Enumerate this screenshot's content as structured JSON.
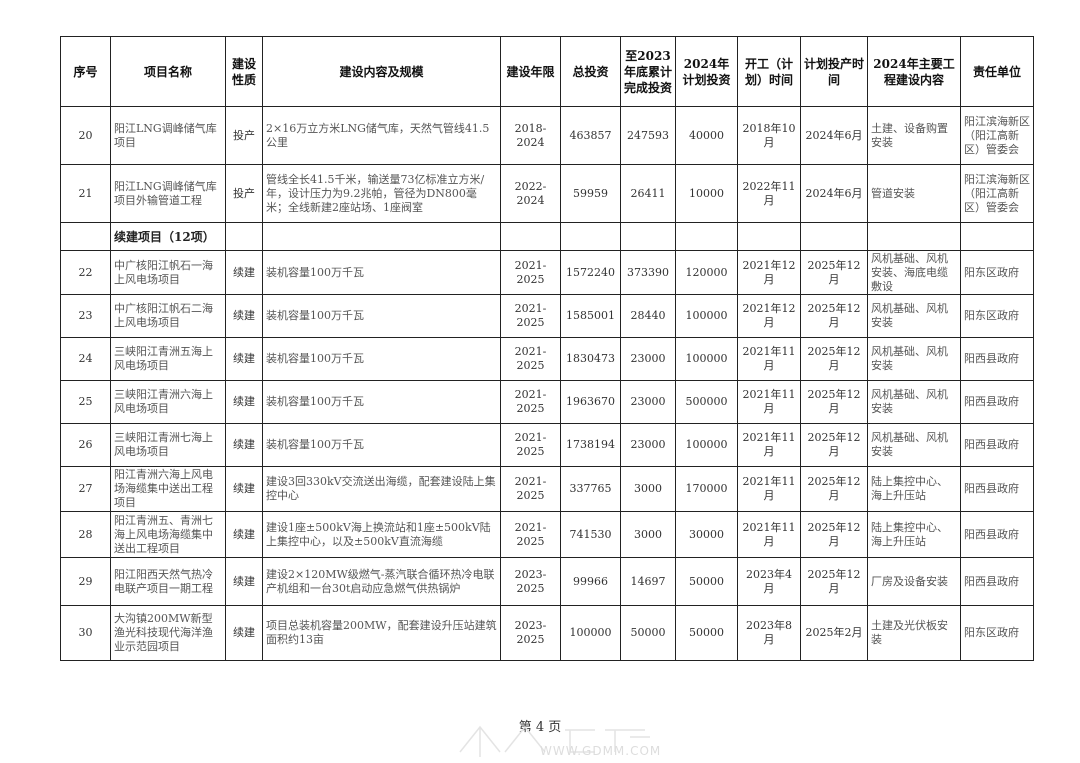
{
  "headers": [
    "序号",
    "项目名称",
    "建设性质",
    "建设内容及规模",
    "建设年限",
    "总投资",
    "至2023年底累计完成投资",
    "2024年计划投资",
    "开工（计划）时间",
    "计划投产时间",
    "2024年主要工程建设内容",
    "责任单位"
  ],
  "rows_a": [
    {
      "no": "20",
      "name": "阳江LNG调峰储气库项目",
      "type": "投产",
      "content": "2×16万立方米LNG储气库，天然气管线41.5公里",
      "period": "2018-2024",
      "total": "463857",
      "done": "247593",
      "plan": "40000",
      "start": "2018年10月",
      "finish": "2024年6月",
      "work": "土建、设备购置安装",
      "unit": "阳江滨海新区（阳江高新区）管委会"
    },
    {
      "no": "21",
      "name": "阳江LNG调峰储气库项目外输管道工程",
      "type": "投产",
      "content": "管线全长41.5千米，输送量73亿标准立方米/年，设计压力为9.2兆帕，管径为DN800毫米；全线新建2座站场、1座阀室",
      "period": "2022-2024",
      "total": "59959",
      "done": "26411",
      "plan": "10000",
      "start": "2022年11月",
      "finish": "2024年6月",
      "work": "管道安装",
      "unit": "阳江滨海新区（阳江高新区）管委会"
    }
  ],
  "section_label": "续建项目（12项）",
  "rows_b": [
    {
      "no": "22",
      "name": "中广核阳江帆石一海上风电场项目",
      "type": "续建",
      "content": "装机容量100万千瓦",
      "period": "2021-2025",
      "total": "1572240",
      "done": "373390",
      "plan": "120000",
      "start": "2021年12月",
      "finish": "2025年12月",
      "work": "风机基础、风机安装、海底电缆敷设",
      "unit": "阳东区政府"
    },
    {
      "no": "23",
      "name": "中广核阳江帆石二海上风电场项目",
      "type": "续建",
      "content": "装机容量100万千瓦",
      "period": "2021-2025",
      "total": "1585001",
      "done": "28440",
      "plan": "100000",
      "start": "2021年12月",
      "finish": "2025年12月",
      "work": "风机基础、风机安装",
      "unit": "阳东区政府"
    },
    {
      "no": "24",
      "name": "三峡阳江青洲五海上风电场项目",
      "type": "续建",
      "content": "装机容量100万千瓦",
      "period": "2021-2025",
      "total": "1830473",
      "done": "23000",
      "plan": "100000",
      "start": "2021年11月",
      "finish": "2025年12月",
      "work": "风机基础、风机安装",
      "unit": "阳西县政府"
    },
    {
      "no": "25",
      "name": "三峡阳江青洲六海上风电场项目",
      "type": "续建",
      "content": "装机容量100万千瓦",
      "period": "2021-2025",
      "total": "1963670",
      "done": "23000",
      "plan": "500000",
      "start": "2021年11月",
      "finish": "2025年12月",
      "work": "风机基础、风机安装",
      "unit": "阳西县政府"
    },
    {
      "no": "26",
      "name": "三峡阳江青洲七海上风电场项目",
      "type": "续建",
      "content": "装机容量100万千瓦",
      "period": "2021-2025",
      "total": "1738194",
      "done": "23000",
      "plan": "100000",
      "start": "2021年11月",
      "finish": "2025年12月",
      "work": "风机基础、风机安装",
      "unit": "阳西县政府"
    },
    {
      "no": "27",
      "name": "阳江青洲六海上风电场海缆集中送出工程项目",
      "type": "续建",
      "content": "建设3回330kV交流送出海缆，配套建设陆上集控中心",
      "period": "2021-2025",
      "total": "337765",
      "done": "3000",
      "plan": "170000",
      "start": "2021年11月",
      "finish": "2025年12月",
      "work": "陆上集控中心、海上升压站",
      "unit": "阳西县政府"
    },
    {
      "no": "28",
      "name": "阳江青洲五、青洲七海上风电场海缆集中送出工程项目",
      "type": "续建",
      "content": "建设1座±500kV海上换流站和1座±500kV陆上集控中心，以及±500kV直流海缆",
      "period": "2021-2025",
      "total": "741530",
      "done": "3000",
      "plan": "30000",
      "start": "2021年11月",
      "finish": "2025年12月",
      "work": "陆上集控中心、海上升压站",
      "unit": "阳西县政府"
    },
    {
      "no": "29",
      "name": "阳江阳西天然气热冷电联产项目一期工程",
      "type": "续建",
      "content": "建设2×120MW级燃气-蒸汽联合循环热冷电联产机组和一台30t启动应急燃气供热锅炉",
      "period": "2023-2025",
      "total": "99966",
      "done": "14697",
      "plan": "50000",
      "start": "2023年4月",
      "finish": "2025年12月",
      "work": "厂房及设备安装",
      "unit": "阳西县政府"
    },
    {
      "no": "30",
      "name": "大沟镇200MW新型渔光科技现代海洋渔业示范园项目",
      "type": "续建",
      "content": "项目总装机容量200MW，配套建设升压站建筑面积约13亩",
      "period": "2023-2025",
      "total": "100000",
      "done": "50000",
      "plan": "50000",
      "start": "2023年8月",
      "finish": "2025年2月",
      "work": "土建及光伏板安装",
      "unit": "阳东区政府"
    }
  ],
  "footer": {
    "page_label": "第 4 页"
  },
  "watermark": {
    "text": "WWW.GDMM.COM"
  }
}
